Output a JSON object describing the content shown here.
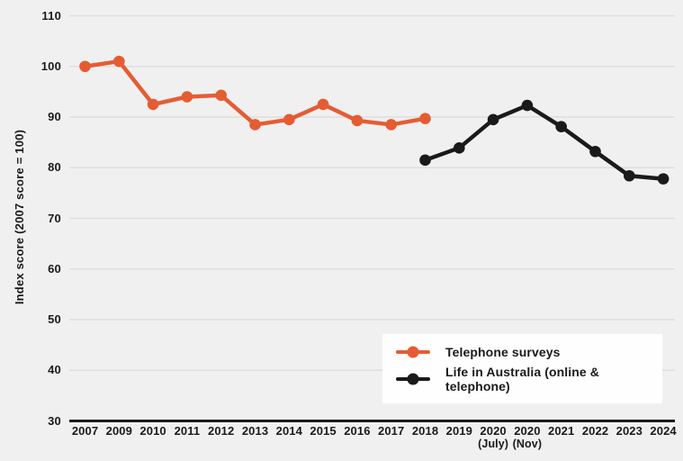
{
  "chart_data": {
    "type": "line",
    "title": "",
    "xlabel": "",
    "ylabel": "Index score (2007 score = 100)",
    "ylim": [
      30,
      110
    ],
    "yticks": [
      110,
      100,
      90,
      80,
      70,
      60,
      50,
      40,
      30
    ],
    "grid": true,
    "legend_position": "bottom-right",
    "background_color": "#f0f0f1",
    "gridline_color": "#dedede",
    "axis_color": "#1a1a1a",
    "categories": [
      "2007",
      "2009",
      "2010",
      "2011",
      "2012",
      "2013",
      "2014",
      "2015",
      "2016",
      "2017",
      "2018",
      "2019",
      "2020",
      "2020",
      "2021",
      "2022",
      "2023",
      "2024"
    ],
    "category_sublabels": [
      "",
      "",
      "",
      "",
      "",
      "",
      "",
      "",
      "",
      "",
      "",
      "",
      "(July)",
      "(Nov)",
      "",
      "",
      "",
      ""
    ],
    "series": [
      {
        "name": "Telephone surveys",
        "color": "#e55c33",
        "start_index": 0,
        "x": [
          "2007",
          "2009",
          "2010",
          "2011",
          "2012",
          "2013",
          "2014",
          "2015",
          "2016",
          "2017",
          "2018"
        ],
        "values": [
          100,
          101,
          92.5,
          94,
          94.3,
          88.5,
          89.5,
          92.5,
          89.3,
          88.5,
          89.7
        ]
      },
      {
        "name": "Life in Australia (online & telephone)",
        "color": "#1a1a1a",
        "start_index": 10,
        "x": [
          "2018",
          "2019",
          "2020 (July)",
          "2020 (Nov)",
          "2021",
          "2022",
          "2023",
          "2024"
        ],
        "values": [
          81.5,
          83.9,
          89.5,
          92.3,
          88.1,
          83.2,
          78.4,
          77.8
        ]
      }
    ]
  }
}
